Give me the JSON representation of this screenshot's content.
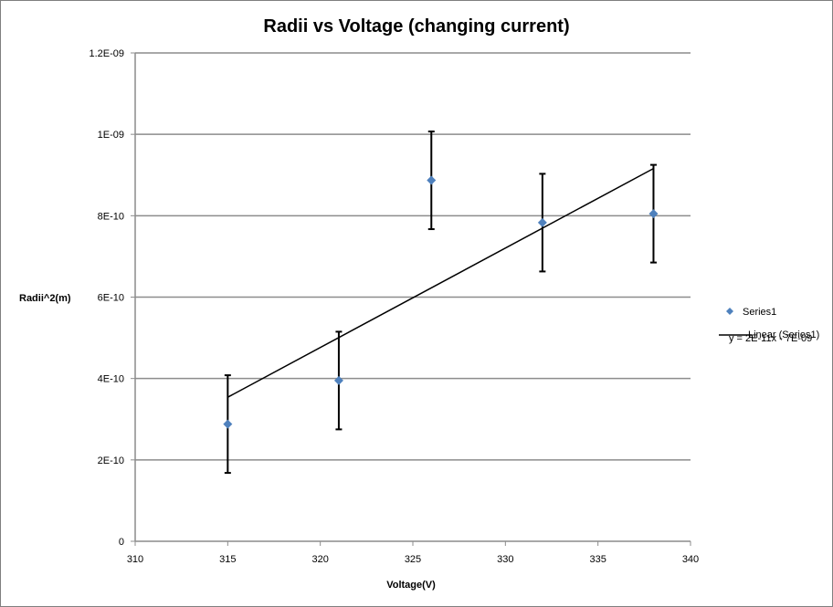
{
  "chart_data": {
    "type": "scatter",
    "title": "Radii vs Voltage (changing current)",
    "xlabel": "Voltage(V)",
    "ylabel": "Radii^2(m)",
    "xlim": [
      310,
      340
    ],
    "ylim": [
      0,
      1.2e-09
    ],
    "x_ticks": [
      310,
      315,
      320,
      325,
      330,
      335,
      340
    ],
    "y_ticks": [
      0,
      2e-10,
      4e-10,
      6e-10,
      8e-10,
      1e-09,
      1.2e-09
    ],
    "x_tick_labels": [
      "310",
      "315",
      "320",
      "325",
      "330",
      "335",
      "340"
    ],
    "y_tick_labels": [
      "0",
      "2E-10",
      "4E-10",
      "6E-10",
      "8E-10",
      "1E-09",
      "1.2E-09"
    ],
    "grid": "horizontal",
    "legend_position": "right",
    "series": [
      {
        "name": "Series1",
        "color": "#4f81bd",
        "marker": "diamond",
        "x": [
          315,
          321,
          326,
          332,
          338
        ],
        "y": [
          2.88e-10,
          3.95e-10,
          8.87e-10,
          7.83e-10,
          8.05e-10
        ],
        "error_y": [
          1.2e-10,
          1.2e-10,
          1.2e-10,
          1.2e-10,
          1.2e-10
        ]
      }
    ],
    "trendline": {
      "name": "Linear (Series1)",
      "color": "#000000",
      "x": [
        315,
        338
      ],
      "y": [
        3.54e-10,
        9.16e-10
      ],
      "equation": "y = 2E-11x - 7E-09"
    }
  }
}
